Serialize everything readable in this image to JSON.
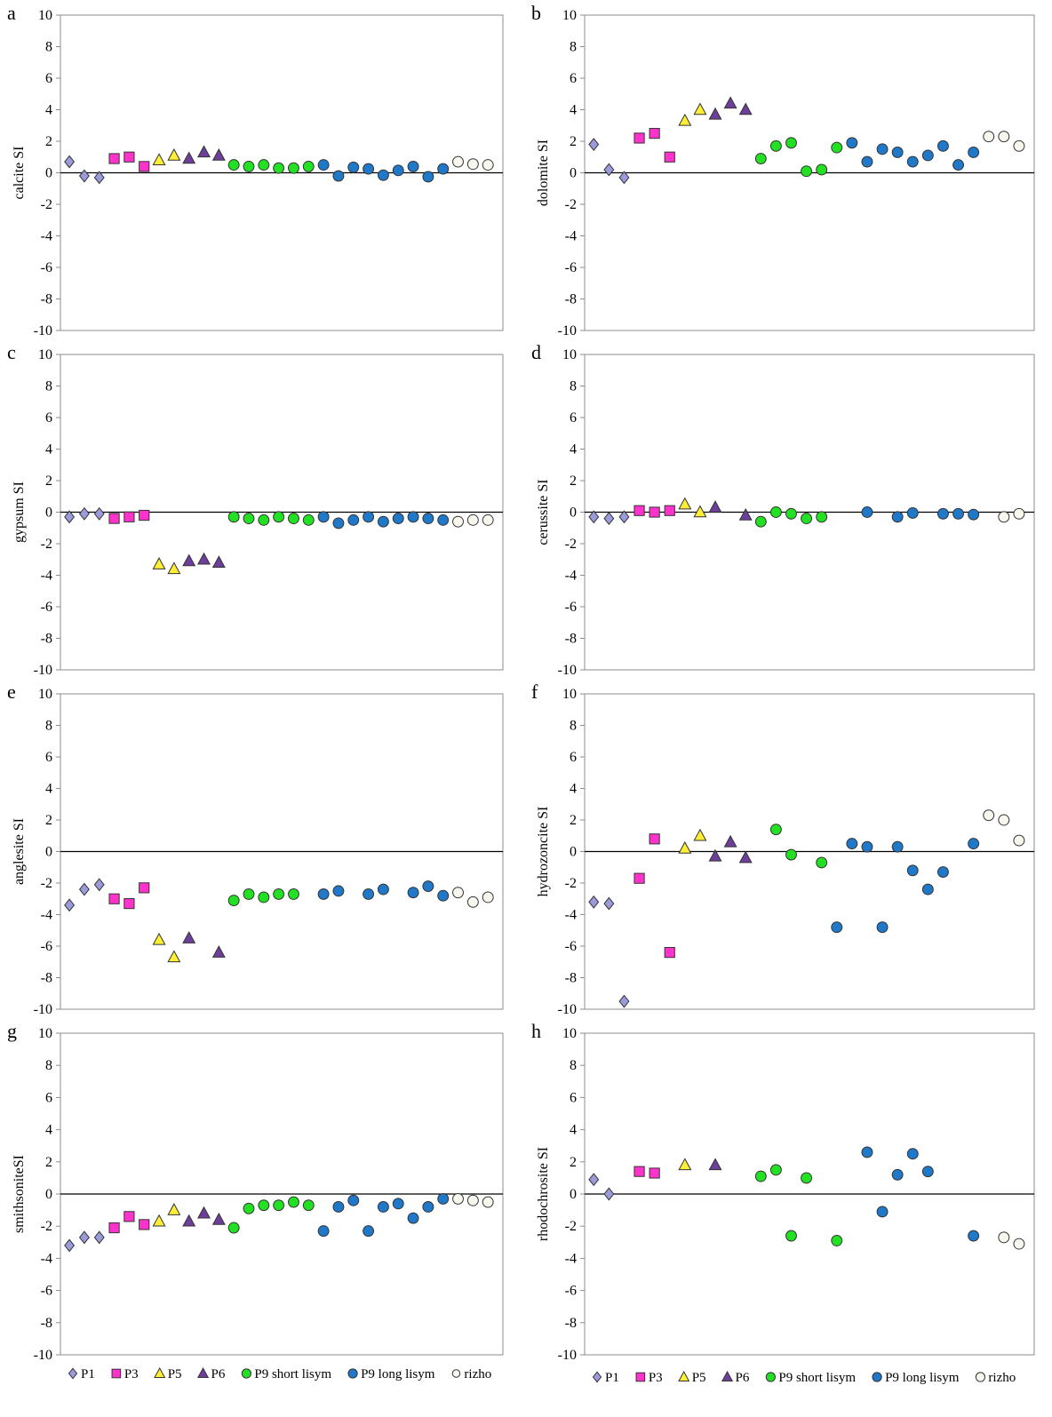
{
  "series_styles": [
    {
      "key": "P1",
      "shape": "diamond",
      "color": "#9b9bdc"
    },
    {
      "key": "P3",
      "shape": "square",
      "color": "#ff33cc"
    },
    {
      "key": "P5",
      "shape": "triangle",
      "color": "#ffee33"
    },
    {
      "key": "P6",
      "shape": "triangle",
      "color": "#6e3f9a"
    },
    {
      "key": "P9s",
      "shape": "circle",
      "color": "#22e022"
    },
    {
      "key": "P9l",
      "shape": "circle",
      "color": "#1f78c8"
    },
    {
      "key": "rizho",
      "shape": "circle",
      "color": "#f7f7ee"
    }
  ],
  "legends": {
    "left": [
      {
        "key": "P1",
        "label": "P1"
      },
      {
        "key": "P3",
        "label": "P3"
      },
      {
        "key": "P5",
        "label": "P5"
      },
      {
        "key": "P6",
        "label": "P6"
      },
      {
        "key": "P9s",
        "label": "P9 short lisym"
      },
      {
        "key": "P9l",
        "label": "P9 long lisym"
      },
      {
        "key": "rizho",
        "label": "rizho"
      }
    ],
    "right": [
      {
        "key": "P1",
        "label": "P1"
      },
      {
        "key": "P3",
        "label": "P3"
      },
      {
        "key": "P5",
        "label": "P5"
      },
      {
        "key": "P6",
        "label": "P6"
      },
      {
        "key": "P9s",
        "label": "P9 short lisym"
      },
      {
        "key": "P9l",
        "label": "P9 long lisym"
      },
      {
        "key": "rizho",
        "label": "rizho"
      }
    ]
  },
  "chart_data": [
    {
      "id": "a",
      "type": "scatter",
      "panel_label": "a",
      "ylabel": "calcite SI",
      "ylim": [
        -10,
        10
      ],
      "yticks": [
        "10",
        "8",
        "6",
        "4",
        "2",
        "0",
        "-2",
        "-4",
        "-6",
        "-8",
        "-10"
      ],
      "x_count": 29,
      "series": [
        {
          "key": "P1",
          "x": [
            1,
            2,
            3
          ],
          "y": [
            0.7,
            -0.2,
            -0.3
          ]
        },
        {
          "key": "P3",
          "x": [
            4,
            5,
            6
          ],
          "y": [
            0.9,
            1.0,
            0.4
          ]
        },
        {
          "key": "P5",
          "x": [
            7,
            8
          ],
          "y": [
            0.8,
            1.1
          ]
        },
        {
          "key": "P6",
          "x": [
            9,
            10,
            11
          ],
          "y": [
            0.9,
            1.3,
            1.1
          ]
        },
        {
          "key": "P9s",
          "x": [
            12,
            13,
            14,
            15,
            16,
            17
          ],
          "y": [
            0.5,
            0.4,
            0.5,
            0.3,
            0.3,
            0.4
          ]
        },
        {
          "key": "P9l",
          "x": [
            18,
            19,
            20,
            21,
            22,
            23,
            24,
            25,
            26
          ],
          "y": [
            0.5,
            -0.2,
            0.35,
            0.25,
            -0.15,
            0.15,
            0.4,
            -0.25,
            0.25
          ]
        },
        {
          "key": "rizho",
          "x": [
            27,
            28,
            29
          ],
          "y": [
            0.7,
            0.55,
            0.5
          ]
        }
      ]
    },
    {
      "id": "b",
      "type": "scatter",
      "panel_label": "b",
      "ylabel": "dolomite SI",
      "ylim": [
        -10,
        10
      ],
      "yticks": [
        "10",
        "8",
        "6",
        "4",
        "2",
        "0",
        "-2",
        "-4",
        "-6",
        "-8",
        "-10"
      ],
      "x_count": 29,
      "series": [
        {
          "key": "P1",
          "x": [
            1,
            2,
            3
          ],
          "y": [
            1.8,
            0.2,
            -0.3
          ]
        },
        {
          "key": "P3",
          "x": [
            4,
            5,
            6
          ],
          "y": [
            2.2,
            2.5,
            1.0
          ]
        },
        {
          "key": "P5",
          "x": [
            7,
            8
          ],
          "y": [
            3.3,
            4.0
          ]
        },
        {
          "key": "P6",
          "x": [
            9,
            10,
            11
          ],
          "y": [
            3.7,
            4.4,
            4.0
          ]
        },
        {
          "key": "P9s",
          "x": [
            12,
            13,
            14,
            15,
            16,
            17
          ],
          "y": [
            0.9,
            1.7,
            1.9,
            0.1,
            0.2,
            1.6
          ]
        },
        {
          "key": "P9l",
          "x": [
            18,
            19,
            20,
            21,
            22,
            23,
            24,
            25,
            26
          ],
          "y": [
            1.9,
            0.7,
            1.5,
            1.3,
            0.7,
            1.1,
            1.7,
            0.5,
            1.3
          ]
        },
        {
          "key": "rizho",
          "x": [
            27,
            28,
            29
          ],
          "y": [
            2.3,
            2.3,
            1.7
          ]
        }
      ]
    },
    {
      "id": "c",
      "type": "scatter",
      "panel_label": "c",
      "ylabel": "gypsum SI",
      "ylim": [
        -10,
        10
      ],
      "yticks": [
        "10",
        "8",
        "6",
        "4",
        "2",
        "0",
        "-2",
        "-4",
        "-6",
        "-8",
        "-10"
      ],
      "x_count": 29,
      "series": [
        {
          "key": "P1",
          "x": [
            1,
            2,
            3
          ],
          "y": [
            -0.3,
            -0.1,
            -0.1
          ]
        },
        {
          "key": "P3",
          "x": [
            4,
            5,
            6
          ],
          "y": [
            -0.4,
            -0.3,
            -0.2
          ]
        },
        {
          "key": "P5",
          "x": [
            7,
            8
          ],
          "y": [
            -3.3,
            -3.6
          ]
        },
        {
          "key": "P6",
          "x": [
            9,
            10,
            11
          ],
          "y": [
            -3.1,
            -3.0,
            -3.2
          ]
        },
        {
          "key": "P9s",
          "x": [
            12,
            13,
            14,
            15,
            16,
            17
          ],
          "y": [
            -0.3,
            -0.4,
            -0.5,
            -0.3,
            -0.4,
            -0.5
          ]
        },
        {
          "key": "P9l",
          "x": [
            18,
            19,
            20,
            21,
            22,
            23,
            24,
            25,
            26
          ],
          "y": [
            -0.3,
            -0.7,
            -0.5,
            -0.3,
            -0.6,
            -0.4,
            -0.3,
            -0.4,
            -0.5
          ]
        },
        {
          "key": "rizho",
          "x": [
            27,
            28,
            29
          ],
          "y": [
            -0.6,
            -0.5,
            -0.5
          ]
        }
      ]
    },
    {
      "id": "d",
      "type": "scatter",
      "panel_label": "d",
      "ylabel": "cerussite SI",
      "ylim": [
        -10,
        10
      ],
      "yticks": [
        "10",
        "8",
        "6",
        "4",
        "2",
        "0",
        "-2",
        "-4",
        "-6",
        "-8",
        "-10"
      ],
      "x_count": 29,
      "series": [
        {
          "key": "P1",
          "x": [
            1,
            2,
            3
          ],
          "y": [
            -0.3,
            -0.4,
            -0.3
          ]
        },
        {
          "key": "P3",
          "x": [
            4,
            5,
            6
          ],
          "y": [
            0.1,
            0.0,
            0.1
          ]
        },
        {
          "key": "P5",
          "x": [
            7,
            8
          ],
          "y": [
            0.5,
            0.0
          ]
        },
        {
          "key": "P6",
          "x": [
            9,
            11
          ],
          "y": [
            0.3,
            -0.2
          ]
        },
        {
          "key": "P9s",
          "x": [
            12,
            13,
            14,
            15,
            16
          ],
          "y": [
            -0.6,
            0.0,
            -0.1,
            -0.4,
            -0.3
          ]
        },
        {
          "key": "P9l",
          "x": [
            19,
            21,
            22,
            24,
            25,
            26
          ],
          "y": [
            0.0,
            -0.3,
            -0.05,
            -0.1,
            -0.1,
            -0.15
          ]
        },
        {
          "key": "rizho",
          "x": [
            28,
            29
          ],
          "y": [
            -0.3,
            -0.1
          ]
        }
      ]
    },
    {
      "id": "e",
      "type": "scatter",
      "panel_label": "e",
      "ylabel": "anglesite SI",
      "ylim": [
        -10,
        10
      ],
      "yticks": [
        "10",
        "8",
        "6",
        "4",
        "2",
        "0",
        "-2",
        "-4",
        "-6",
        "-8",
        "-10"
      ],
      "x_count": 29,
      "series": [
        {
          "key": "P1",
          "x": [
            1,
            2,
            3
          ],
          "y": [
            -3.4,
            -2.4,
            -2.1
          ]
        },
        {
          "key": "P3",
          "x": [
            4,
            5,
            6
          ],
          "y": [
            -3.0,
            -3.3,
            -2.3
          ]
        },
        {
          "key": "P5",
          "x": [
            7,
            8
          ],
          "y": [
            -5.6,
            -6.7
          ]
        },
        {
          "key": "P6",
          "x": [
            9,
            11
          ],
          "y": [
            -5.5,
            -6.4
          ]
        },
        {
          "key": "P9s",
          "x": [
            12,
            13,
            14,
            15,
            16
          ],
          "y": [
            -3.1,
            -2.7,
            -2.9,
            -2.7,
            -2.7
          ]
        },
        {
          "key": "P9l",
          "x": [
            18,
            19,
            21,
            22,
            24,
            25,
            26
          ],
          "y": [
            -2.7,
            -2.5,
            -2.7,
            -2.4,
            -2.6,
            -2.2,
            -2.8
          ]
        },
        {
          "key": "rizho",
          "x": [
            27,
            28,
            29
          ],
          "y": [
            -2.6,
            -3.2,
            -2.9
          ]
        }
      ]
    },
    {
      "id": "f",
      "type": "scatter",
      "panel_label": "f",
      "ylabel": "hydrozoncite SI",
      "ylim": [
        -10,
        10
      ],
      "yticks": [
        "10",
        "8",
        "6",
        "4",
        "2",
        "0",
        "-2",
        "-4",
        "-6",
        "-8",
        "-10"
      ],
      "x_count": 29,
      "series": [
        {
          "key": "P1",
          "x": [
            1,
            2,
            3
          ],
          "y": [
            -3.2,
            -3.3,
            -9.5
          ]
        },
        {
          "key": "P3",
          "x": [
            4,
            5,
            6
          ],
          "y": [
            -1.7,
            0.8,
            -6.4
          ]
        },
        {
          "key": "P5",
          "x": [
            7,
            8
          ],
          "y": [
            0.2,
            1.0
          ]
        },
        {
          "key": "P6",
          "x": [
            9,
            10,
            11
          ],
          "y": [
            -0.3,
            0.6,
            -0.4
          ]
        },
        {
          "key": "P9s",
          "x": [
            13,
            14,
            16
          ],
          "y": [
            1.4,
            -0.2,
            -0.7
          ]
        },
        {
          "key": "P9l",
          "x": [
            17,
            18,
            19,
            20,
            21,
            22,
            23,
            24,
            26
          ],
          "y": [
            -4.8,
            0.5,
            0.3,
            -4.8,
            0.3,
            -1.2,
            -2.4,
            -1.3,
            0.5
          ]
        },
        {
          "key": "rizho",
          "x": [
            27,
            28,
            29
          ],
          "y": [
            2.3,
            2.0,
            0.7
          ]
        }
      ]
    },
    {
      "id": "g",
      "type": "scatter",
      "panel_label": "g",
      "ylabel": "smithsoniteSI",
      "ylim": [
        -10,
        10
      ],
      "yticks": [
        "10",
        "8",
        "6",
        "4",
        "2",
        "0",
        "-2",
        "-4",
        "-6",
        "-8",
        "-10"
      ],
      "x_count": 29,
      "series": [
        {
          "key": "P1",
          "x": [
            1,
            2,
            3
          ],
          "y": [
            -3.2,
            -2.7,
            -2.7
          ]
        },
        {
          "key": "P3",
          "x": [
            4,
            5,
            6
          ],
          "y": [
            -2.1,
            -1.4,
            -1.9
          ]
        },
        {
          "key": "P5",
          "x": [
            7,
            8
          ],
          "y": [
            -1.7,
            -1.0
          ]
        },
        {
          "key": "P6",
          "x": [
            9,
            10,
            11
          ],
          "y": [
            -1.7,
            -1.2,
            -1.6
          ]
        },
        {
          "key": "P9s",
          "x": [
            12,
            13,
            14,
            15,
            16,
            17
          ],
          "y": [
            -2.1,
            -0.9,
            -0.7,
            -0.7,
            -0.5,
            -0.7
          ]
        },
        {
          "key": "P9l",
          "x": [
            18,
            19,
            20,
            21,
            22,
            23,
            24,
            25,
            26
          ],
          "y": [
            -2.3,
            -0.8,
            -0.4,
            -2.3,
            -0.8,
            -0.6,
            -1.5,
            -0.8,
            -0.3
          ]
        },
        {
          "key": "rizho",
          "x": [
            27,
            28,
            29
          ],
          "y": [
            -0.3,
            -0.4,
            -0.5
          ]
        }
      ]
    },
    {
      "id": "h",
      "type": "scatter",
      "panel_label": "h",
      "ylabel": "rhodochrosite SI",
      "ylim": [
        -10,
        10
      ],
      "yticks": [
        "10",
        "8",
        "6",
        "4",
        "2",
        "0",
        "-2",
        "-4",
        "-6",
        "-8",
        "-10"
      ],
      "x_count": 29,
      "series": [
        {
          "key": "P1",
          "x": [
            1,
            2
          ],
          "y": [
            0.9,
            0.0
          ]
        },
        {
          "key": "P3",
          "x": [
            4,
            5
          ],
          "y": [
            1.4,
            1.3
          ]
        },
        {
          "key": "P5",
          "x": [
            7
          ],
          "y": [
            1.8
          ]
        },
        {
          "key": "P6",
          "x": [
            9
          ],
          "y": [
            1.8
          ]
        },
        {
          "key": "P9s",
          "x": [
            12,
            13,
            14,
            15,
            17
          ],
          "y": [
            1.1,
            1.5,
            -2.6,
            1.0,
            -2.9
          ]
        },
        {
          "key": "P9l",
          "x": [
            19,
            20,
            21,
            22,
            23,
            26
          ],
          "y": [
            2.6,
            -1.1,
            1.2,
            2.5,
            1.4,
            -2.6
          ]
        },
        {
          "key": "rizho",
          "x": [
            28,
            29
          ],
          "y": [
            -2.7,
            -3.1
          ]
        }
      ]
    }
  ]
}
